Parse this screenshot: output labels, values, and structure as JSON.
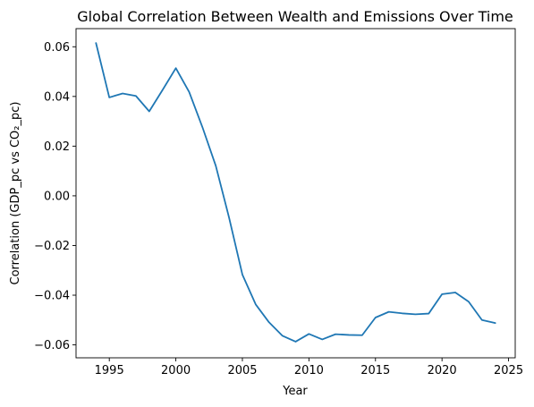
{
  "chart_data": {
    "type": "line",
    "title": "Global Correlation Between Wealth and Emissions Over Time",
    "xlabel": "Year",
    "ylabel": "Correlation (GDP_pc vs CO₂_pc)",
    "xlim": [
      1992.5,
      2025.5
    ],
    "ylim": [
      -0.0652,
      0.0673
    ],
    "xticks": [
      1995,
      2000,
      2005,
      2010,
      2015,
      2020,
      2025
    ],
    "xtick_labels": [
      "1995",
      "2000",
      "2005",
      "2010",
      "2015",
      "2020",
      "2025"
    ],
    "yticks": [
      -0.06,
      -0.04,
      -0.02,
      0.0,
      0.02,
      0.04,
      0.06
    ],
    "ytick_labels": [
      "−0.06",
      "−0.04",
      "−0.02",
      "0.00",
      "0.02",
      "0.04",
      "0.06"
    ],
    "grid": false,
    "series": [
      {
        "color": "#1f77b4",
        "x": [
          1994,
          1995,
          1996,
          1997,
          1998,
          1999,
          2000,
          2001,
          2002,
          2003,
          2004,
          2005,
          2006,
          2007,
          2008,
          2009,
          2010,
          2011,
          2012,
          2013,
          2014,
          2015,
          2016,
          2017,
          2018,
          2019,
          2020,
          2021,
          2022,
          2023,
          2024
        ],
        "values": [
          0.0615,
          0.0396,
          0.0412,
          0.0402,
          0.034,
          0.0426,
          0.0514,
          0.0418,
          0.0276,
          0.0121,
          -0.0088,
          -0.0317,
          -0.0437,
          -0.0509,
          -0.0563,
          -0.0587,
          -0.0556,
          -0.0578,
          -0.0557,
          -0.056,
          -0.0561,
          -0.049,
          -0.0467,
          -0.0473,
          -0.0477,
          -0.0474,
          -0.0396,
          -0.0389,
          -0.0426,
          -0.05,
          -0.0512
        ]
      }
    ]
  }
}
